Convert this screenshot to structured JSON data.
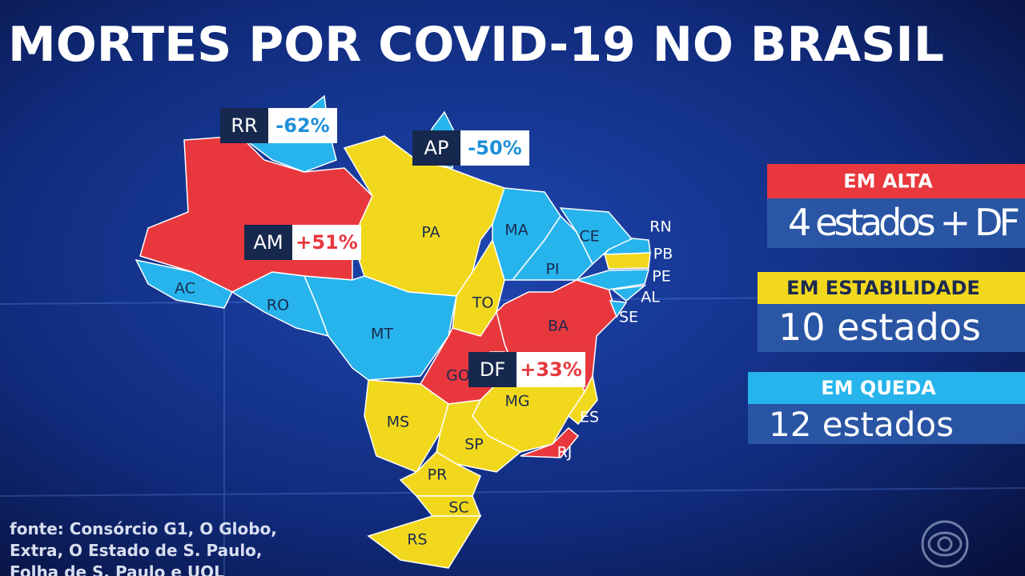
{
  "title": "MORTES POR COVID-19 NO BRASIL",
  "legend": [
    {
      "title": "EM ALTA",
      "text": "4 estados + DF",
      "color": "#e8383d",
      "states": [
        {
          "label": "AM",
          "change": "+51%"
        },
        {
          "label": "BA"
        },
        {
          "label": "GO"
        },
        {
          "label": "DF",
          "change": "+33%"
        },
        {
          "label": "RJ"
        }
      ]
    },
    {
      "title": "EM ESTABILIDADE",
      "text": "10 estados",
      "color": "#f2d81c",
      "states": [
        {
          "label": "PA"
        },
        {
          "label": "TO"
        },
        {
          "label": "MS"
        },
        {
          "label": "MG"
        },
        {
          "label": "SP"
        },
        {
          "label": "PR"
        },
        {
          "label": "SC"
        },
        {
          "label": "RS"
        },
        {
          "label": "PB"
        },
        {
          "label": "ES"
        }
      ]
    },
    {
      "title": "EM QUEDA",
      "text": "12 estados",
      "color": "#27b4ec",
      "states": [
        {
          "label": "RR",
          "change": "-62%"
        },
        {
          "label": "AP",
          "change": "-50%"
        },
        {
          "label": "AC"
        },
        {
          "label": "RO"
        },
        {
          "label": "MT"
        },
        {
          "label": "MA"
        },
        {
          "label": "PI"
        },
        {
          "label": "CE"
        },
        {
          "label": "RN"
        },
        {
          "label": "PE"
        },
        {
          "label": "AL"
        },
        {
          "label": "SE"
        }
      ]
    }
  ],
  "source": [
    "fonte: Consórcio G1, O Globo,",
    "Extra, O Estado de S. Paulo,",
    "Folha de S. Paulo e UOL"
  ]
}
